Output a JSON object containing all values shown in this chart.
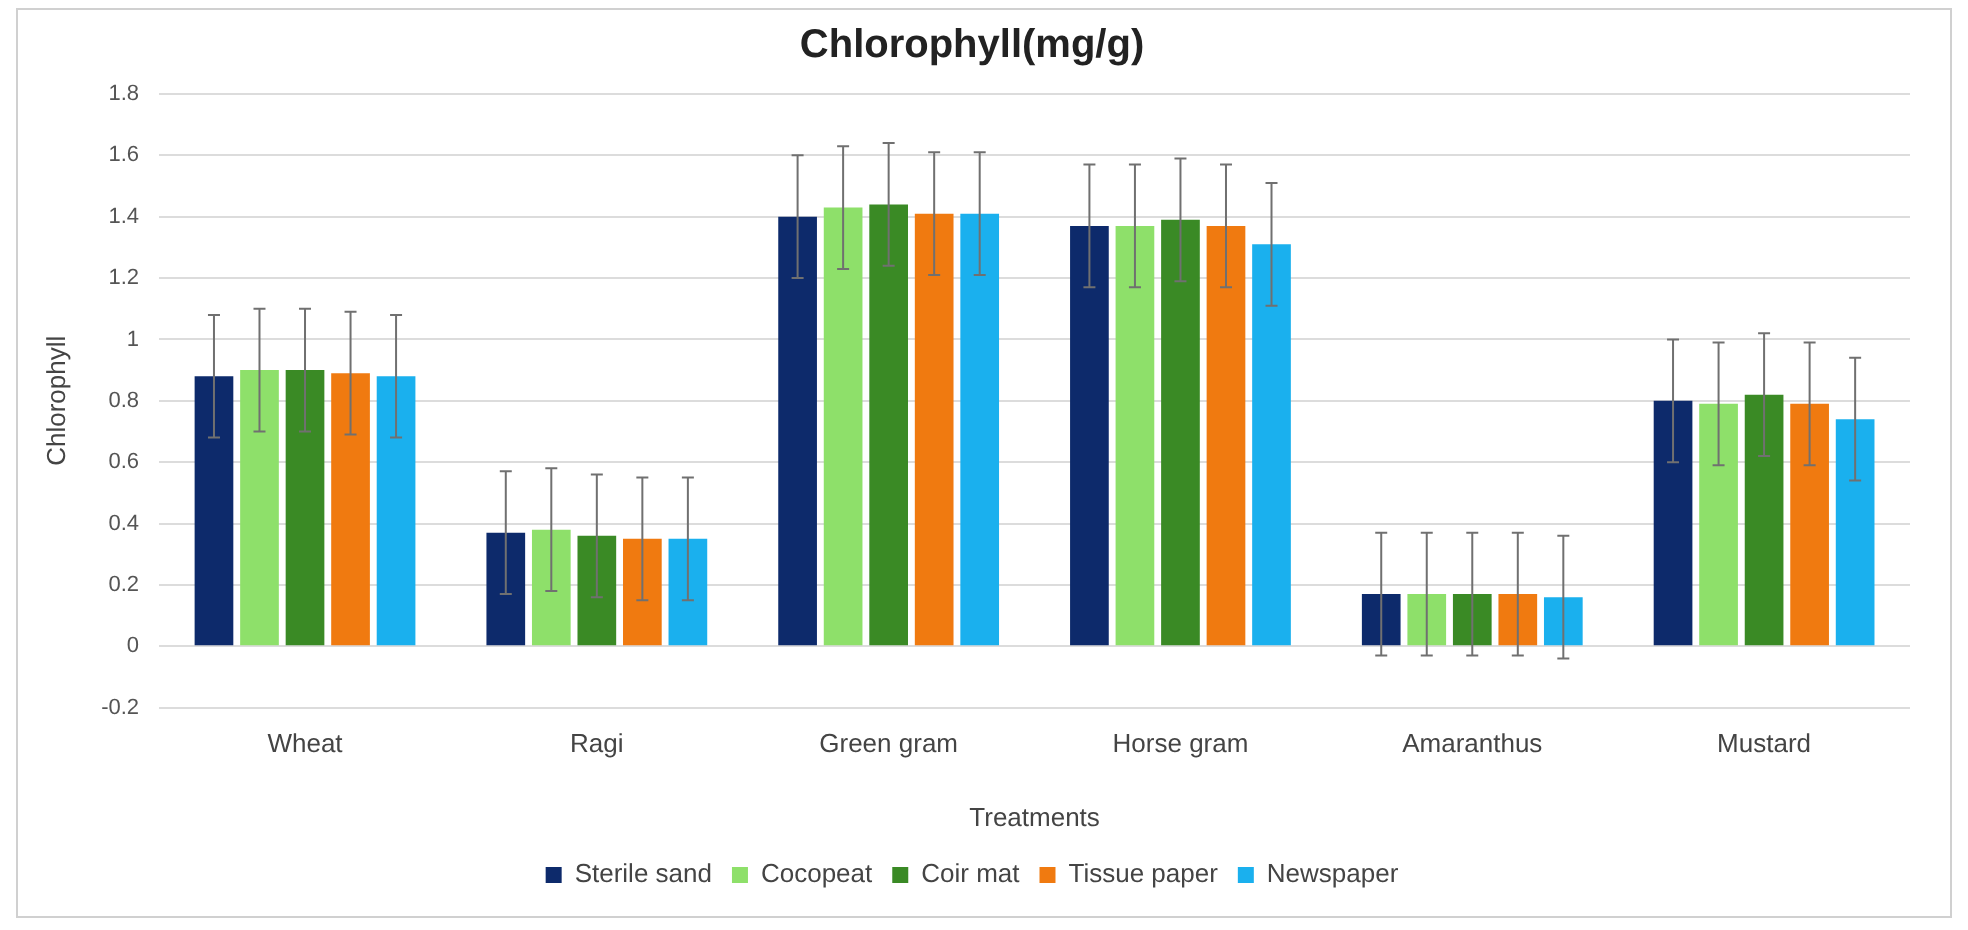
{
  "chart_data": {
    "type": "bar",
    "title": "Chlorophyll(mg/g)",
    "xlabel": "Treatments",
    "ylabel": "Chlorophyll",
    "categories": [
      "Wheat",
      "Ragi",
      "Green gram",
      "Horse gram",
      "Amaranthus",
      "Mustard"
    ],
    "series": [
      {
        "name": "Sterile sand",
        "color": "#0d2a6b",
        "values": [
          0.88,
          0.37,
          1.4,
          1.37,
          0.17,
          0.8
        ],
        "errors": [
          0.2,
          0.2,
          0.2,
          0.2,
          0.2,
          0.2
        ]
      },
      {
        "name": "Cocopeat",
        "color": "#8ee06a",
        "values": [
          0.9,
          0.38,
          1.43,
          1.37,
          0.17,
          0.79
        ],
        "errors": [
          0.2,
          0.2,
          0.2,
          0.2,
          0.2,
          0.2
        ]
      },
      {
        "name": "Coir mat",
        "color": "#3a8a25",
        "values": [
          0.9,
          0.36,
          1.44,
          1.39,
          0.17,
          0.82
        ],
        "errors": [
          0.2,
          0.2,
          0.2,
          0.2,
          0.2,
          0.2
        ]
      },
      {
        "name": "Tissue paper",
        "color": "#f07a10",
        "values": [
          0.89,
          0.35,
          1.41,
          1.37,
          0.17,
          0.79
        ],
        "errors": [
          0.2,
          0.2,
          0.2,
          0.2,
          0.2,
          0.2
        ]
      },
      {
        "name": "Newspaper",
        "color": "#1ab0ee",
        "values": [
          0.88,
          0.35,
          1.41,
          1.31,
          0.16,
          0.74
        ],
        "errors": [
          0.2,
          0.2,
          0.2,
          0.2,
          0.2,
          0.2
        ]
      }
    ],
    "ylim": [
      -0.2,
      1.8
    ],
    "yticks": [
      -0.2,
      0,
      0.2,
      0.4,
      0.6,
      0.8,
      1,
      1.2,
      1.4,
      1.6,
      1.8
    ],
    "grid": "y",
    "legend": "bottom"
  }
}
